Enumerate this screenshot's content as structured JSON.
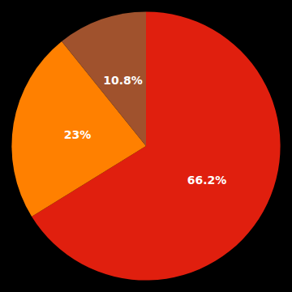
{
  "chart_data": {
    "type": "pie",
    "values": [
      66.2,
      23.0,
      10.8
    ],
    "value_labels": [
      "66.2%",
      "23%",
      "10.8%"
    ],
    "colors": [
      "#E01F0E",
      "#FF8000",
      "#A0522D"
    ],
    "data_labels": true
  }
}
